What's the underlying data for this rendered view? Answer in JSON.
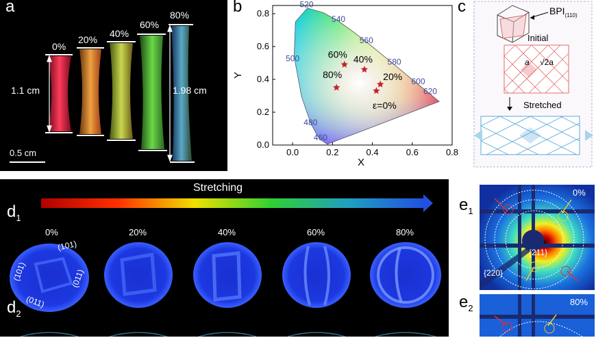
{
  "panel_a": {
    "letter": "a",
    "strain_labels": [
      "0%",
      "20%",
      "40%",
      "60%",
      "80%"
    ],
    "initial_length": "1.1 cm",
    "stretched_length": "1.98 cm",
    "scale_bar": "0.5 cm"
  },
  "panel_b": {
    "letter": "b",
    "chart_data": {
      "type": "scatter",
      "xlabel": "X",
      "ylabel": "Y",
      "xlim": [
        -0.1,
        0.8
      ],
      "ylim": [
        0.0,
        0.85
      ],
      "x_ticks": [
        "0.0",
        "0.2",
        "0.4",
        "0.6",
        "0.8"
      ],
      "y_ticks": [
        "0.0",
        "0.2",
        "0.4",
        "0.6",
        "0.8"
      ],
      "wavelength_labels": [
        {
          "text": "520",
          "x": 0.07,
          "y": 0.84
        },
        {
          "text": "540",
          "x": 0.23,
          "y": 0.75
        },
        {
          "text": "560",
          "x": 0.37,
          "y": 0.62
        },
        {
          "text": "580",
          "x": 0.51,
          "y": 0.49
        },
        {
          "text": "600",
          "x": 0.63,
          "y": 0.37
        },
        {
          "text": "620",
          "x": 0.69,
          "y": 0.31
        },
        {
          "text": "500",
          "x": 0.0,
          "y": 0.51
        },
        {
          "text": "480",
          "x": 0.09,
          "y": 0.12
        },
        {
          "text": "460",
          "x": 0.14,
          "y": 0.03
        }
      ],
      "points": [
        {
          "label": "ε=0%",
          "x": 0.42,
          "y": 0.33
        },
        {
          "label": "20%",
          "x": 0.44,
          "y": 0.37
        },
        {
          "label": "40%",
          "x": 0.36,
          "y": 0.46
        },
        {
          "label": "60%",
          "x": 0.26,
          "y": 0.49
        },
        {
          "label": "80%",
          "x": 0.22,
          "y": 0.35
        }
      ]
    }
  },
  "panel_c": {
    "letter": "c",
    "bpi_label": "BPI",
    "bpi_subscript": "(110)",
    "initial": "Initial",
    "lattice_a": "a",
    "lattice_sqrt": "√2a",
    "stretched": "Stretched"
  },
  "panel_d": {
    "title": "Stretching",
    "d1_letter": "d",
    "d1_sub": "1",
    "d2_letter": "d",
    "d2_sub": "2",
    "strains": [
      "0%",
      "20%",
      "40%",
      "60%",
      "80%"
    ],
    "planes": [
      "(101)",
      "(101)",
      "(011)",
      "(011)"
    ]
  },
  "panel_e1": {
    "letter": "e",
    "sub": "1",
    "strain": "0%",
    "ring_211": "{211}",
    "ring_220": "{220}"
  },
  "panel_e2": {
    "letter": "e",
    "sub": "2",
    "strain": "80%"
  },
  "colors": {
    "star": "#c8202a",
    "wavelength_text": "#3d4a9a",
    "panel_c_border": "#b7b0d0",
    "panel_c_red": "#e56a6a",
    "panel_c_blue": "#5aa8d8"
  }
}
